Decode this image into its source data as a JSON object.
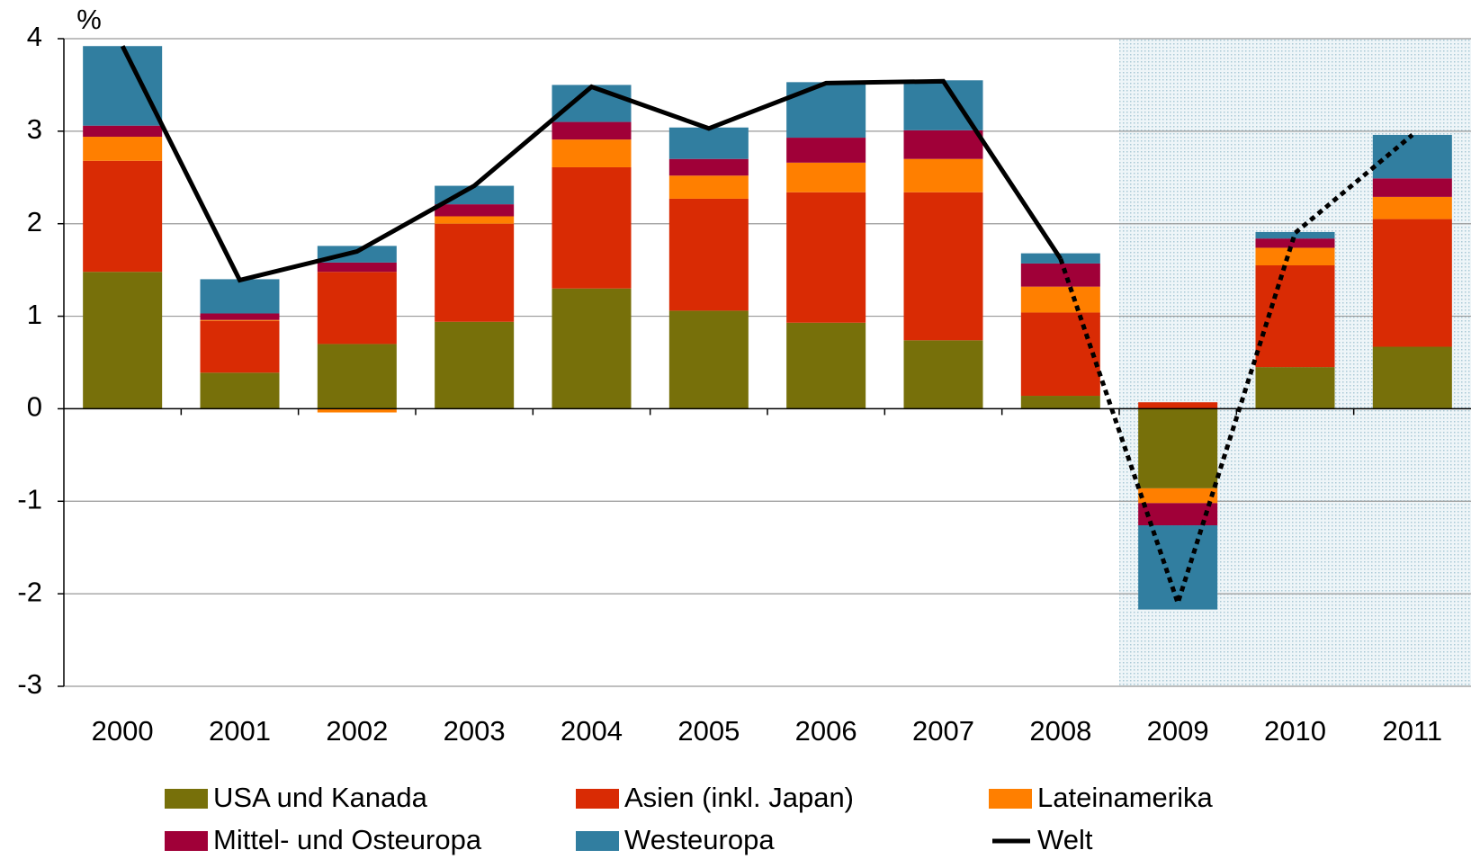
{
  "chart_data": {
    "type": "stacked_bar_line",
    "ylabel": "%",
    "categories": [
      "2000",
      "2001",
      "2002",
      "2003",
      "2004",
      "2005",
      "2006",
      "2007",
      "2008",
      "2009",
      "2010",
      "2011"
    ],
    "series": [
      {
        "name": "USA und Kanada",
        "color": "#77700a",
        "values": [
          1.48,
          0.39,
          0.7,
          0.94,
          1.3,
          1.06,
          0.93,
          0.74,
          0.14,
          -0.86,
          0.45,
          0.67
        ]
      },
      {
        "name": "Asien (inkl. Japan)",
        "color": "#d92b04",
        "values": [
          1.2,
          0.56,
          0.78,
          1.06,
          1.31,
          1.21,
          1.41,
          1.6,
          0.9,
          0.07,
          1.1,
          1.38
        ]
      },
      {
        "name": "Lateinamerika",
        "color": "#ff7f00",
        "values": [
          0.26,
          0.01,
          -0.04,
          0.08,
          0.3,
          0.25,
          0.32,
          0.36,
          0.28,
          -0.16,
          0.19,
          0.24
        ]
      },
      {
        "name": "Mittel- und Osteuropa",
        "color": "#a00038",
        "values": [
          0.12,
          0.07,
          0.1,
          0.13,
          0.19,
          0.18,
          0.27,
          0.31,
          0.25,
          -0.24,
          0.1,
          0.2
        ]
      },
      {
        "name": "Westeuropa",
        "color": "#317ea0",
        "values": [
          0.86,
          0.37,
          0.18,
          0.2,
          0.4,
          0.34,
          0.6,
          0.54,
          0.11,
          -0.91,
          0.07,
          0.47
        ]
      }
    ],
    "line": {
      "name": "Welt",
      "color": "#000000",
      "values": [
        3.92,
        1.39,
        1.7,
        2.41,
        3.48,
        3.03,
        3.52,
        3.54,
        1.62,
        -2.1,
        1.9,
        2.96
      ]
    },
    "forecast_from": "2009",
    "ylim": [
      -3,
      4
    ],
    "yticks": [
      -3,
      -2,
      -1,
      0,
      1,
      2,
      3,
      4
    ],
    "grid": true
  }
}
